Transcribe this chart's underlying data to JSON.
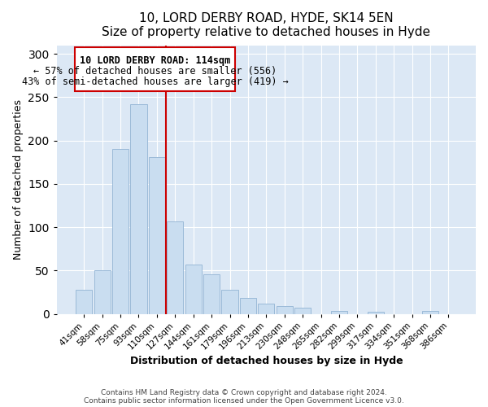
{
  "title": "10, LORD DERBY ROAD, HYDE, SK14 5EN",
  "subtitle": "Size of property relative to detached houses in Hyde",
  "xlabel": "Distribution of detached houses by size in Hyde",
  "ylabel": "Number of detached properties",
  "categories": [
    "41sqm",
    "58sqm",
    "75sqm",
    "93sqm",
    "110sqm",
    "127sqm",
    "144sqm",
    "161sqm",
    "179sqm",
    "196sqm",
    "213sqm",
    "230sqm",
    "248sqm",
    "265sqm",
    "282sqm",
    "299sqm",
    "317sqm",
    "334sqm",
    "351sqm",
    "368sqm",
    "386sqm"
  ],
  "values": [
    28,
    50,
    190,
    242,
    181,
    107,
    57,
    46,
    28,
    18,
    12,
    9,
    7,
    0,
    3,
    0,
    2,
    0,
    0,
    3,
    0
  ],
  "bar_color": "#c9ddf0",
  "bar_edge_color": "#9bbad8",
  "marker_label": "10 LORD DERBY ROAD: 114sqm",
  "annotation_line1": "← 57% of detached houses are smaller (556)",
  "annotation_line2": "43% of semi-detached houses are larger (419) →",
  "marker_color": "#cc0000",
  "ylim": [
    0,
    310
  ],
  "yticks": [
    0,
    50,
    100,
    150,
    200,
    250,
    300
  ],
  "footer1": "Contains HM Land Registry data © Crown copyright and database right 2024.",
  "footer2": "Contains public sector information licensed under the Open Government Licence v3.0.",
  "bg_color": "#ffffff",
  "plot_bg_color": "#dce8f5"
}
